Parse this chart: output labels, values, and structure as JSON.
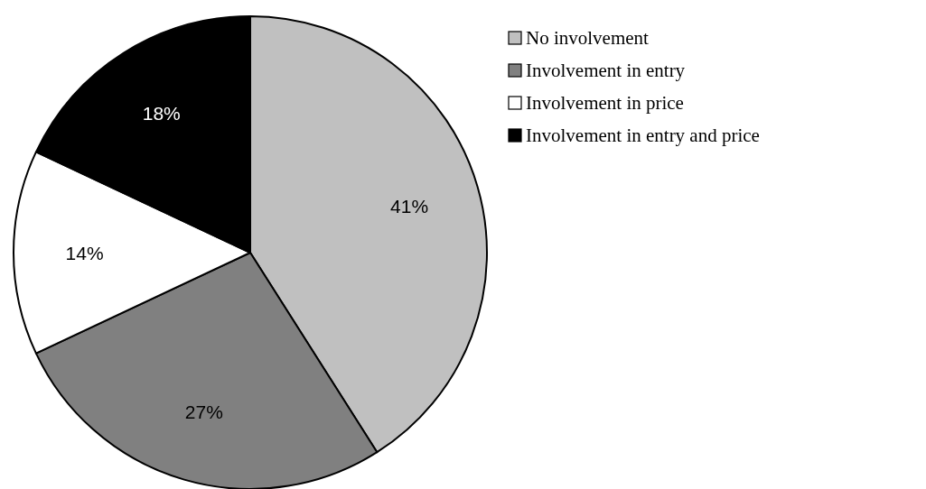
{
  "chart_data": {
    "type": "pie",
    "categories": [
      "No involvement",
      "Involvement in entry",
      "Involvement in price",
      "Involvement in entry and price"
    ],
    "values": [
      41,
      27,
      14,
      18
    ],
    "colors": [
      "#c0c0c0",
      "#808080",
      "#ffffff",
      "#000000"
    ],
    "value_labels": [
      "41%",
      "27%",
      "14%",
      "18%"
    ],
    "legend": "right"
  }
}
